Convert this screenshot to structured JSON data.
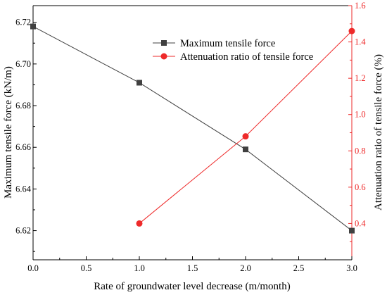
{
  "chart_data": {
    "type": "line",
    "xlabel": "Rate of groundwater level decrease (m/month)",
    "ylabel_left": "Maximum tensile force (kN/m)",
    "ylabel_right": "Attenuation ratio of tensile force (%)",
    "xlim": [
      0,
      3
    ],
    "ylim_left": [
      6.606,
      6.728
    ],
    "ylim_right": [
      0.2,
      1.6
    ],
    "x_ticks": [
      "0.0",
      "0.5",
      "1.0",
      "1.5",
      "2.0",
      "2.5",
      "3.0"
    ],
    "y_left_ticks": [
      "6.62",
      "6.64",
      "6.66",
      "6.68",
      "6.70",
      "6.72"
    ],
    "y_right_ticks": [
      "0.4",
      "0.6",
      "0.8",
      "1.0",
      "1.2",
      "1.4",
      "1.6"
    ],
    "grid": false,
    "legend_position": "top-right",
    "series": [
      {
        "name": "Maximum tensile force",
        "axis": "left",
        "color": "#404040",
        "marker": "square",
        "x": [
          0,
          1,
          2,
          3
        ],
        "y": [
          6.718,
          6.691,
          6.659,
          6.62
        ]
      },
      {
        "name": "Attenuation ratio of tensile force",
        "axis": "right",
        "color": "#ee2a2a",
        "marker": "circle",
        "x": [
          1,
          2,
          3
        ],
        "y": [
          0.4,
          0.88,
          1.46
        ]
      }
    ],
    "colors": {
      "left_axis": "#000000",
      "right_axis": "#ee2a2a"
    }
  }
}
